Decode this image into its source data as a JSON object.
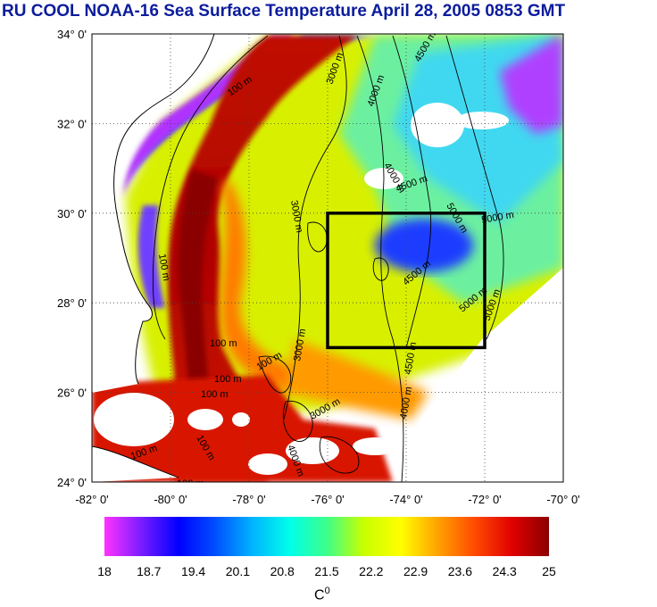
{
  "title": "RU COOL  NOAA-16 Sea Surface Temperature April 28, 2005 0853 GMT",
  "map": {
    "lat_labels": [
      "34° 0'",
      "32° 0'",
      "30° 0'",
      "28° 0'",
      "26° 0'",
      "24° 0'"
    ],
    "lon_labels": [
      "-82° 0'",
      "-80° 0'",
      "-78° 0'",
      "-76° 0'",
      "-74° 0'",
      "-72° 0'",
      "-70° 0'"
    ],
    "lat_range": [
      24,
      34
    ],
    "lon_range": [
      -82,
      -70
    ],
    "grid": true,
    "contour_labels": [
      "100 m",
      "100 m",
      "100 m",
      "100 m",
      "100 m",
      "100 m",
      "100 m",
      "100 m",
      "100 m",
      "3000 m",
      "4000 m",
      "4500 m",
      "4000 m",
      "3000 m",
      "4500 m",
      "5000 m",
      "5000 m",
      "4500 m",
      "5000 m",
      "4500 m",
      "4000 m",
      "3000 m",
      "5000 m",
      "3000 m",
      "4000 m"
    ],
    "study_box": {
      "lat": [
        27,
        30
      ],
      "lon": [
        -76,
        -72
      ]
    },
    "colors": {
      "box": "#000000",
      "title": "#0b1c9c",
      "land": "#ffffff",
      "cloud": "#ffffff"
    }
  },
  "colorbar": {
    "unit": "C",
    "unit_sup": "0",
    "ticks": [
      "18",
      "18.7",
      "19.4",
      "20.1",
      "20.8",
      "21.5",
      "22.2",
      "22.9",
      "23.6",
      "24.3",
      "25"
    ],
    "range": [
      18,
      25
    ],
    "stops": [
      "#ff33ff",
      "#7a1cff",
      "#0000ff",
      "#0050ff",
      "#00b4ff",
      "#00ffea",
      "#3cff8a",
      "#c8ff00",
      "#ffff00",
      "#ffa200",
      "#ff4a00",
      "#e00000",
      "#8a0000"
    ]
  }
}
